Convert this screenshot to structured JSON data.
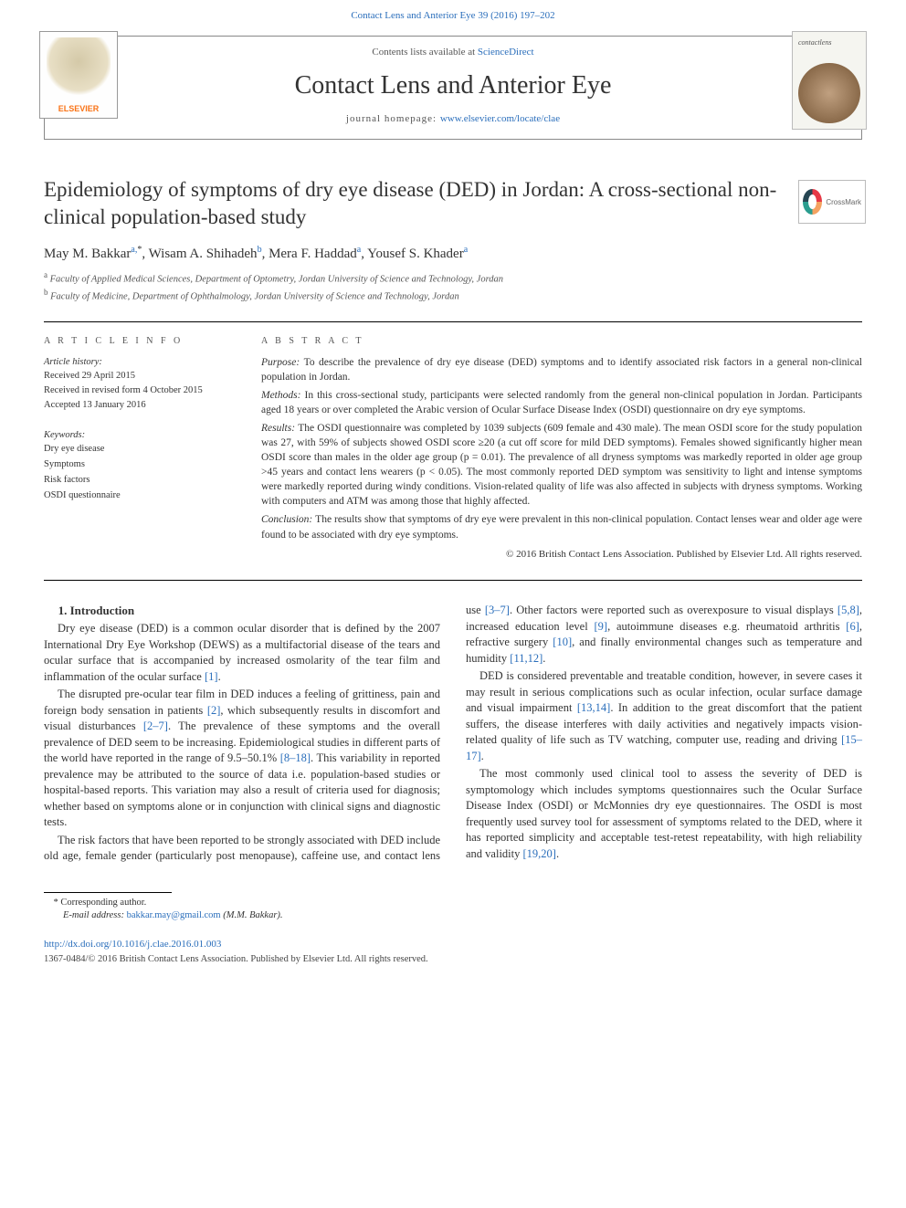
{
  "top_citation": "Contact Lens and Anterior Eye 39 (2016) 197–202",
  "header": {
    "contents_pre": "Contents lists available at ",
    "contents_link": "ScienceDirect",
    "journal_title": "Contact Lens and Anterior Eye",
    "homepage_pre": "journal homepage: ",
    "homepage_link": "www.elsevier.com/locate/clae",
    "elsevier_label": "ELSEVIER",
    "cover_title": "contactlens"
  },
  "crossmark_label": "CrossMark",
  "article": {
    "title": "Epidemiology of symptoms of dry eye disease (DED) in Jordan: A cross-sectional non-clinical population-based study",
    "authors_html": [
      {
        "name": "May M. Bakkar",
        "aff": "a,",
        "ast": "*"
      },
      {
        "name": "Wisam A. Shihadeh",
        "aff": "b"
      },
      {
        "name": "Mera F. Haddad",
        "aff": "a"
      },
      {
        "name": "Yousef S. Khader",
        "aff": "a"
      }
    ],
    "affiliations": [
      {
        "sup": "a",
        "text": "Faculty of Applied Medical Sciences, Department of Optometry, Jordan University of Science and Technology, Jordan"
      },
      {
        "sup": "b",
        "text": "Faculty of Medicine, Department of Ophthalmology, Jordan University of Science and Technology, Jordan"
      }
    ]
  },
  "info": {
    "head": "A R T I C L E   I N F O",
    "history_label": "Article history:",
    "received": "Received 29 April 2015",
    "revised": "Received in revised form 4 October 2015",
    "accepted": "Accepted 13 January 2016",
    "keywords_label": "Keywords:",
    "keywords": [
      "Dry eye disease",
      "Symptoms",
      "Risk factors",
      "OSDI questionnaire"
    ]
  },
  "abstract": {
    "head": "A B S T R A C T",
    "purpose_label": "Purpose: ",
    "purpose": "To describe the prevalence of dry eye disease (DED) symptoms and to identify associated risk factors in a general non-clinical population in Jordan.",
    "methods_label": "Methods: ",
    "methods": "In this cross-sectional study, participants were selected randomly from the general non-clinical population in Jordan. Participants aged 18 years or over completed the Arabic version of Ocular Surface Disease Index (OSDI) questionnaire on dry eye symptoms.",
    "results_label": "Results: ",
    "results": "The OSDI questionnaire was completed by 1039 subjects (609 female and 430 male). The mean OSDI score for the study population was 27, with 59% of subjects showed OSDI score ≥20 (a cut off score for mild DED symptoms). Females showed significantly higher mean OSDI score than males in the older age group (p = 0.01). The prevalence of all dryness symptoms was markedly reported in older age group >45 years and contact lens wearers (p < 0.05). The most commonly reported DED symptom was sensitivity to light and intense symptoms were markedly reported during windy conditions. Vision-related quality of life was also affected in subjects with dryness symptoms. Working with computers and ATM was among those that highly affected.",
    "conclusion_label": "Conclusion: ",
    "conclusion": "The results show that symptoms of dry eye were prevalent in this non-clinical population. Contact lenses wear and older age were found to be associated with dry eye symptoms.",
    "copyright": "© 2016 British Contact Lens Association. Published by Elsevier Ltd. All rights reserved."
  },
  "body": {
    "section_head": "1. Introduction",
    "p1a": "Dry eye disease (DED) is a common ocular disorder that is defined by the 2007 International Dry Eye Workshop (DEWS) as a multifactorial disease of the tears and ocular surface that is accompanied by increased osmolarity of the tear film and inflammation of the ocular surface ",
    "r1": "[1]",
    "p1b": ".",
    "p2a": "The disrupted pre-ocular tear film in DED induces a feeling of grittiness, pain and foreign body sensation in patients ",
    "r2": "[2]",
    "p2b": ", which subsequently results in discomfort and visual disturbances ",
    "r2_7": "[2–7]",
    "p2c": ". The prevalence of these symptoms and the overall prevalence of DED seem to be increasing. Epidemiological studies in different parts of the world have reported in the range of 9.5–50.1% ",
    "r8_18": "[8–18]",
    "p2d": ". This variability in reported prevalence may be attributed to the source of data i.e. population-based studies or hospital-based reports. This variation may also a result of criteria used for diagnosis; whether based on symptoms alone or in conjunction with clinical signs and diagnostic tests.",
    "p3a": "The risk factors that have been reported to be strongly associated with DED include old age, female gender (particularly post menopause), caffeine use, and contact lens use ",
    "r3_7": "[3–7]",
    "p3b": ". Other factors were reported such as overexposure to visual displays ",
    "r5_8": "[5,8]",
    "p3c": ", increased education level ",
    "r9": "[9]",
    "p3d": ", autoimmune diseases e.g. rheumatoid arthritis ",
    "r6": "[6]",
    "p3e": ", refractive surgery ",
    "r10": "[10]",
    "p3f": ", and finally environmental changes such as temperature and humidity ",
    "r11_12": "[11,12]",
    "p3g": ".",
    "p4a": "DED is considered preventable and treatable condition, however, in severe cases it may result in serious complications such as ocular infection, ocular surface damage and visual impairment ",
    "r13_14": "[13,14]",
    "p4b": ". In addition to the great discomfort that the patient suffers, the disease interferes with daily activities and negatively impacts vision-related quality of life such as TV watching, computer use, reading and driving ",
    "r15_17": "[15–17]",
    "p4c": ".",
    "p5a": "The most commonly used clinical tool to assess the severity of DED is symptomology which includes symptoms questionnaires such the Ocular Surface Disease Index (OSDI) or McMonnies dry eye questionnaires. The OSDI is most frequently used survey tool for assessment of symptoms related to the DED, where it has reported simplicity and acceptable test-retest repeatability, with high reliability and validity ",
    "r19_20": "[19,20]",
    "p5b": "."
  },
  "footer": {
    "corr": "* Corresponding author.",
    "email_label": "E-mail address: ",
    "email": "bakkar.may@gmail.com",
    "email_tail": " (M.M. Bakkar).",
    "doi": "http://dx.doi.org/10.1016/j.clae.2016.01.003",
    "issn": "1367-0484/© 2016 British Contact Lens Association. Published by Elsevier Ltd. All rights reserved."
  },
  "colors": {
    "link": "#2a6ebb",
    "text": "#333333"
  }
}
